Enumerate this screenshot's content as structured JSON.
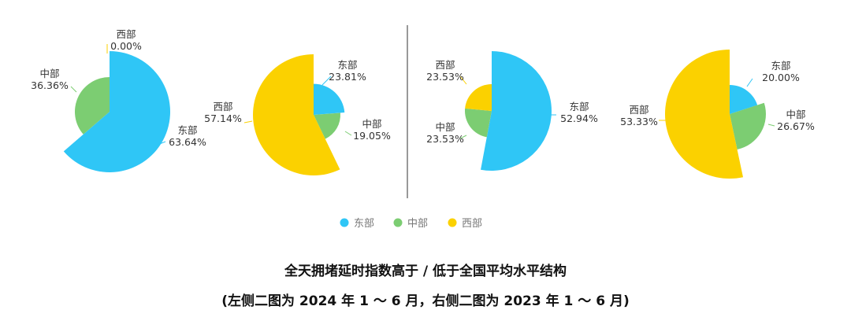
{
  "colors": {
    "east": "#2fc6f6",
    "central": "#7ccd72",
    "west": "#fbd100"
  },
  "legend": [
    {
      "key": "east",
      "label": "东部"
    },
    {
      "key": "central",
      "label": "中部"
    },
    {
      "key": "west",
      "label": "西部"
    }
  ],
  "caption": {
    "line1": "全天拥堵延时指数高于 / 低于全国平均水平结构",
    "line2": "(左侧二图为 2024 年 1 ～ 6 月，右侧二图为 2023 年 1 ～ 6 月)"
  },
  "chart_data": [
    {
      "type": "pie",
      "period": "2024年1～6月",
      "slices": [
        {
          "key": "east",
          "label": "东部",
          "value_label": "63.64%",
          "value": 63.64
        },
        {
          "key": "central",
          "label": "中部",
          "value_label": "36.36%",
          "value": 36.36
        },
        {
          "key": "west",
          "label": "西部",
          "value_label": "0.00%",
          "value": 0.0
        }
      ]
    },
    {
      "type": "pie",
      "period": "2024年1～6月",
      "slices": [
        {
          "key": "east",
          "label": "东部",
          "value_label": "23.81%",
          "value": 23.81
        },
        {
          "key": "central",
          "label": "中部",
          "value_label": "19.05%",
          "value": 19.05
        },
        {
          "key": "west",
          "label": "西部",
          "value_label": "57.14%",
          "value": 57.14
        }
      ]
    },
    {
      "type": "pie",
      "period": "2023年1～6月",
      "slices": [
        {
          "key": "east",
          "label": "东部",
          "value_label": "52.94%",
          "value": 52.94
        },
        {
          "key": "central",
          "label": "中部",
          "value_label": "23.53%",
          "value": 23.53
        },
        {
          "key": "west",
          "label": "西部",
          "value_label": "23.53%",
          "value": 23.53
        }
      ]
    },
    {
      "type": "pie",
      "period": "2023年1～6月",
      "slices": [
        {
          "key": "east",
          "label": "东部",
          "value_label": "20.00%",
          "value": 20.0
        },
        {
          "key": "central",
          "label": "中部",
          "value_label": "26.67%",
          "value": 26.67
        },
        {
          "key": "west",
          "label": "西部",
          "value_label": "53.33%",
          "value": 53.33
        }
      ]
    }
  ]
}
